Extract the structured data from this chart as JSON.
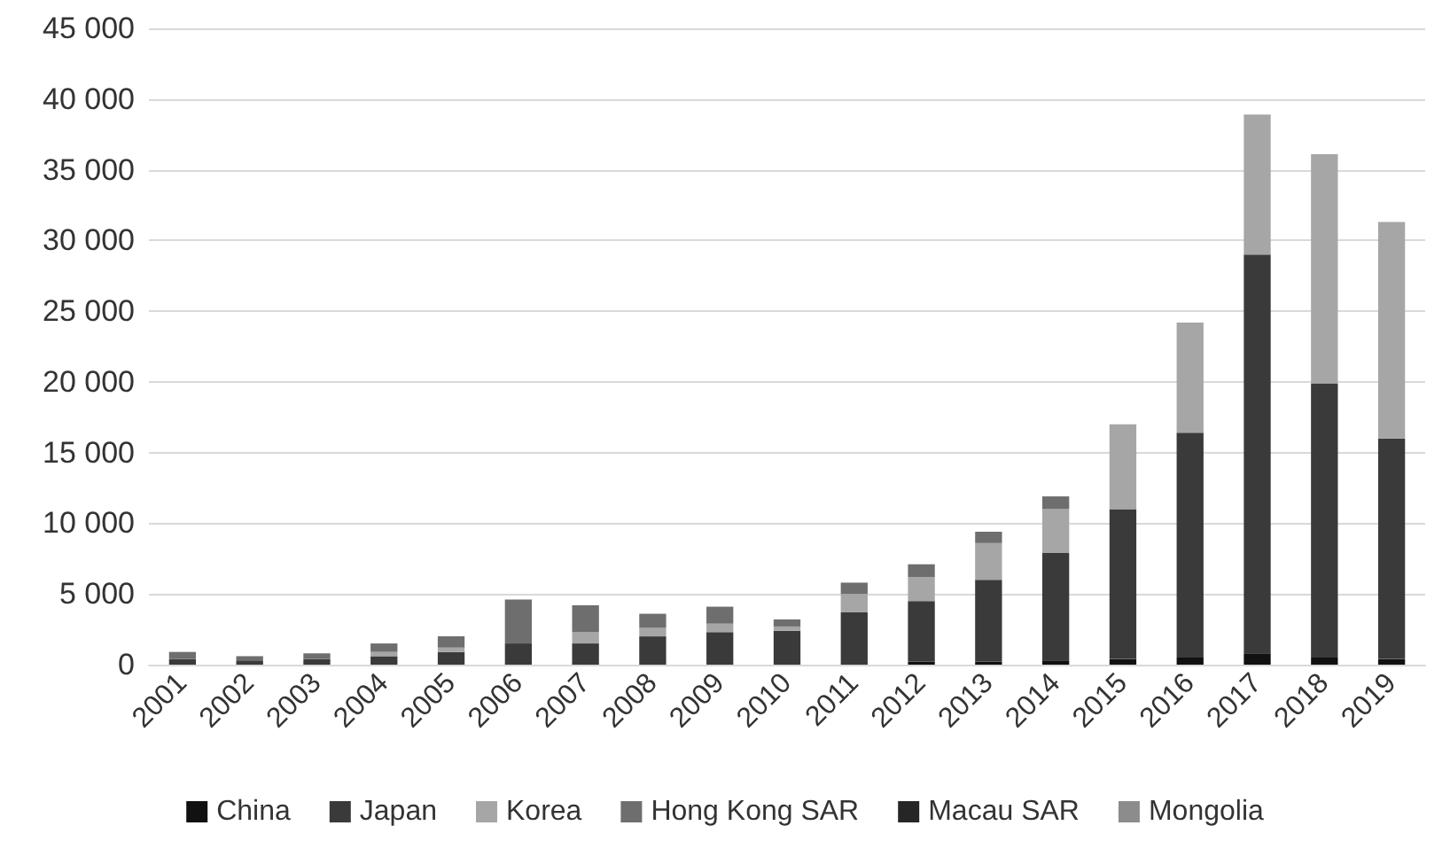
{
  "chart_data": {
    "type": "bar",
    "stacked": true,
    "grid": "y",
    "legend": "bottom",
    "categories": [
      "2001",
      "2002",
      "2003",
      "2004",
      "2005",
      "2006",
      "2007",
      "2008",
      "2009",
      "2010",
      "2011",
      "2012",
      "2013",
      "2014",
      "2015",
      "2016",
      "2017",
      "2018",
      "2019"
    ],
    "ylim": [
      0,
      45000
    ],
    "yticks": [
      0,
      {
        "value": 5000,
        "label": "5 000"
      },
      {
        "value": 10000,
        "label": "10 000"
      },
      {
        "value": 15000,
        "label": "15 000"
      },
      {
        "value": 20000,
        "label": "20 000"
      },
      {
        "value": 25000,
        "label": "25 000"
      },
      {
        "value": 30000,
        "label": "30 000"
      },
      {
        "value": 35000,
        "label": "35 000"
      },
      {
        "value": 40000,
        "label": "40 000"
      },
      {
        "value": 45000,
        "label": "45 000"
      }
    ],
    "series": [
      {
        "name": "China",
        "color": "#111111",
        "values": [
          0,
          0,
          0,
          0,
          0,
          0,
          0,
          0,
          0,
          0,
          0,
          200,
          200,
          300,
          400,
          500,
          800,
          500,
          400
        ]
      },
      {
        "name": "Japan",
        "color": "#3a3a3a",
        "values": [
          400,
          300,
          400,
          600,
          900,
          1500,
          1500,
          2000,
          2300,
          2400,
          3700,
          4300,
          5800,
          7600,
          10600,
          15900,
          28200,
          19400,
          15600
        ]
      },
      {
        "name": "Korea",
        "color": "#a6a6a6",
        "values": [
          0,
          0,
          0,
          300,
          300,
          0,
          800,
          600,
          600,
          300,
          1300,
          1700,
          2600,
          3100,
          6000,
          7800,
          9900,
          16200,
          15300
        ]
      },
      {
        "name": "Hong Kong SAR",
        "color": "#6e6e6e",
        "values": [
          500,
          300,
          400,
          600,
          800,
          3100,
          1900,
          1000,
          1200,
          500,
          800,
          900,
          800,
          900,
          0,
          0,
          0,
          0,
          0
        ]
      },
      {
        "name": "Macau SAR",
        "color": "#262626",
        "values": [
          0,
          0,
          0,
          0,
          0,
          0,
          0,
          0,
          0,
          0,
          0,
          0,
          0,
          0,
          0,
          0,
          0,
          0,
          0
        ]
      },
      {
        "name": "Mongolia",
        "color": "#8c8c8c",
        "values": [
          0,
          0,
          0,
          0,
          0,
          0,
          0,
          0,
          0,
          0,
          0,
          0,
          0,
          0,
          0,
          0,
          0,
          0,
          0
        ]
      }
    ]
  }
}
